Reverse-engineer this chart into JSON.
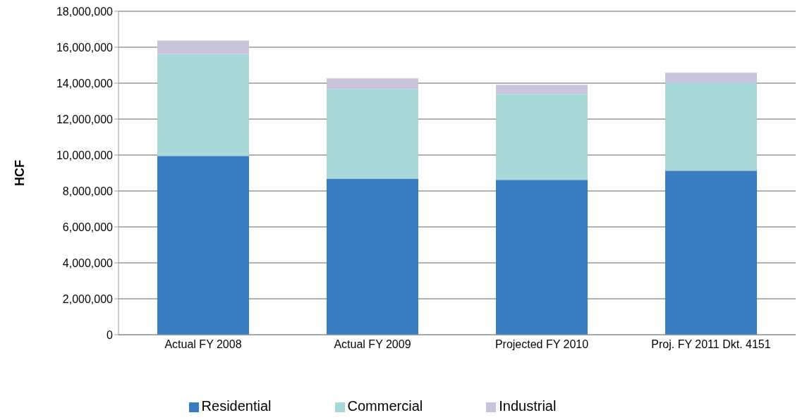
{
  "chart_data": {
    "type": "bar",
    "stacked": true,
    "ylabel": "HCF",
    "categories": [
      "Actual FY 2008",
      "Actual FY 2009",
      "Projected FY 2010",
      "Proj. FY 2011 Dkt. 4151"
    ],
    "series": [
      {
        "name": "Residential",
        "color": "#3a7cc0",
        "values": [
          9950000,
          8690000,
          8620000,
          9130000
        ]
      },
      {
        "name": "Commercial",
        "color": "#a8d8d8",
        "values": [
          5670000,
          4990000,
          4770000,
          4870000
        ]
      },
      {
        "name": "Industrial",
        "color": "#c8c4dc",
        "values": [
          750000,
          580000,
          510000,
          580000
        ]
      }
    ],
    "ylim": [
      0,
      18000000
    ],
    "yticks": [
      0,
      {
        "value": 2000000,
        "label": "2,000,000"
      },
      {
        "value": 4000000,
        "label": "4,000,000"
      },
      {
        "value": 6000000,
        "label": "6,000,000"
      },
      {
        "value": 8000000,
        "label": "8,000,000"
      },
      {
        "value": 10000000,
        "label": "10,000,000"
      },
      {
        "value": 12000000,
        "label": "12,000,000"
      },
      {
        "value": 14000000,
        "label": "14,000,000"
      },
      {
        "value": 16000000,
        "label": "16,000,000"
      },
      {
        "value": 18000000,
        "label": "18,000,000"
      }
    ],
    "grid": "y",
    "legend": "bottom"
  }
}
